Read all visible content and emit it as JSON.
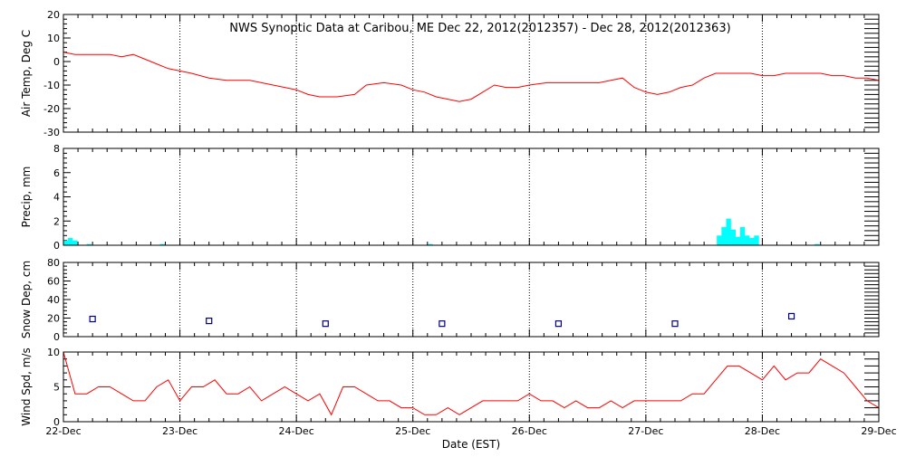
{
  "title": "NWS Synoptic Data at Caribou, ME    Dec 22, 2012(2012357) - Dec 28, 2012(2012363)",
  "xlabel": "Date (EST)",
  "x_ticks": [
    "22-Dec",
    "23-Dec",
    "24-Dec",
    "25-Dec",
    "26-Dec",
    "27-Dec",
    "28-Dec",
    "29-Dec"
  ],
  "chart_data": [
    {
      "type": "line",
      "ylabel": "Air Temp, Deg C",
      "ylim": [
        -30,
        20
      ],
      "yticks": [
        -30,
        -20,
        -10,
        0,
        10,
        20
      ],
      "xlim": [
        0,
        7
      ],
      "grid": "vertical dotted at day boundaries",
      "color": "#ff0000",
      "x": [
        0,
        0.1,
        0.2,
        0.3,
        0.4,
        0.5,
        0.6,
        0.7,
        0.8,
        0.9,
        1.0,
        1.1,
        1.25,
        1.4,
        1.6,
        1.8,
        2.0,
        2.1,
        2.2,
        2.35,
        2.5,
        2.6,
        2.75,
        2.9,
        3.0,
        3.1,
        3.2,
        3.3,
        3.4,
        3.5,
        3.6,
        3.7,
        3.8,
        3.9,
        4.0,
        4.15,
        4.3,
        4.5,
        4.6,
        4.7,
        4.8,
        4.9,
        5.0,
        5.1,
        5.2,
        5.3,
        5.4,
        5.5,
        5.6,
        5.7,
        5.8,
        5.9,
        6.0,
        6.1,
        6.2,
        6.3,
        6.4,
        6.5,
        6.6,
        6.7,
        6.8,
        6.9,
        7.0
      ],
      "y": [
        4,
        3,
        3,
        3,
        3,
        2,
        3,
        1,
        -1,
        -3,
        -4,
        -5,
        -7,
        -8,
        -8,
        -10,
        -12,
        -14,
        -15,
        -15,
        -14,
        -10,
        -9,
        -10,
        -12,
        -13,
        -15,
        -16,
        -17,
        -16,
        -13,
        -10,
        -11,
        -11,
        -10,
        -9,
        -9,
        -9,
        -9,
        -8,
        -7,
        -11,
        -13,
        -14,
        -13,
        -11,
        -10,
        -7,
        -5,
        -5,
        -5,
        -5,
        -6,
        -6,
        -5,
        -5,
        -5,
        -5,
        -6,
        -6,
        -7,
        -7,
        -8
      ]
    },
    {
      "type": "bar",
      "ylabel": "Precip, mm",
      "ylim": [
        0,
        8
      ],
      "yticks": [
        0,
        2,
        4,
        6,
        8
      ],
      "xlim": [
        0,
        7
      ],
      "color": "#00ffff",
      "bar_width_days": 0.0417,
      "x": [
        0.02,
        0.06,
        0.1,
        0.22,
        0.85,
        3.15,
        5.63,
        5.67,
        5.71,
        5.75,
        5.79,
        5.83,
        5.87,
        5.91,
        5.95,
        6.47
      ],
      "values": [
        0.4,
        0.6,
        0.4,
        0.1,
        0.1,
        0.1,
        0.8,
        1.5,
        2.2,
        1.3,
        0.7,
        1.5,
        0.8,
        0.6,
        0.8,
        0.1
      ]
    },
    {
      "type": "scatter",
      "ylabel": "Snow Dep, cm",
      "ylim": [
        0,
        80
      ],
      "yticks": [
        0,
        20,
        40,
        60,
        80
      ],
      "xlim": [
        0,
        7
      ],
      "marker": "open-square",
      "color": "#000080",
      "x": [
        0.25,
        1.25,
        2.25,
        3.25,
        4.25,
        5.25,
        6.25
      ],
      "y": [
        19,
        17,
        14,
        14,
        14,
        14,
        22
      ]
    },
    {
      "type": "line",
      "ylabel": "Wind Spd, m/s",
      "ylim": [
        0,
        10
      ],
      "yticks": [
        0,
        5,
        10
      ],
      "xlim": [
        0,
        7
      ],
      "color": "#ff0000",
      "x": [
        0,
        0.1,
        0.2,
        0.3,
        0.4,
        0.5,
        0.6,
        0.7,
        0.8,
        0.9,
        1.0,
        1.1,
        1.2,
        1.3,
        1.4,
        1.5,
        1.6,
        1.7,
        1.8,
        1.9,
        2.0,
        2.1,
        2.2,
        2.3,
        2.4,
        2.5,
        2.6,
        2.7,
        2.8,
        2.9,
        3.0,
        3.1,
        3.2,
        3.3,
        3.4,
        3.5,
        3.6,
        3.7,
        3.8,
        3.9,
        4.0,
        4.1,
        4.2,
        4.3,
        4.4,
        4.5,
        4.6,
        4.7,
        4.8,
        4.9,
        5.0,
        5.1,
        5.2,
        5.3,
        5.4,
        5.5,
        5.6,
        5.7,
        5.8,
        5.9,
        6.0,
        6.1,
        6.2,
        6.3,
        6.4,
        6.5,
        6.6,
        6.7,
        6.8,
        6.9,
        7.0
      ],
      "y": [
        10,
        4,
        4,
        5,
        5,
        4,
        3,
        3,
        5,
        6,
        3,
        5,
        5,
        6,
        4,
        4,
        5,
        3,
        4,
        5,
        4,
        3,
        4,
        1,
        5,
        5,
        4,
        3,
        3,
        2,
        2,
        1,
        1,
        2,
        1,
        2,
        3,
        3,
        3,
        3,
        4,
        3,
        3,
        2,
        3,
        2,
        2,
        3,
        2,
        3,
        3,
        3,
        3,
        3,
        4,
        4,
        6,
        8,
        8,
        7,
        6,
        8,
        6,
        7,
        7,
        9,
        8,
        7,
        5,
        3,
        2
      ]
    }
  ]
}
